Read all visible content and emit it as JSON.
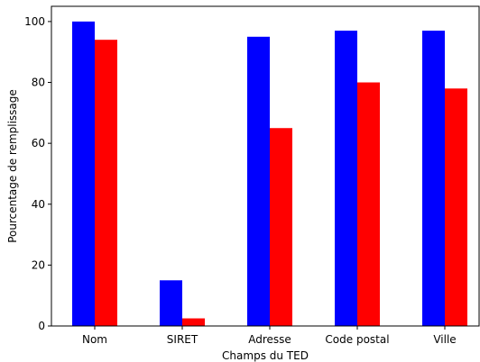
{
  "chart_data": {
    "type": "bar",
    "title": "",
    "xlabel": "Champs du TED",
    "ylabel": "Pourcentage de remplissage",
    "categories": [
      "Nom",
      "SIRET",
      "Adresse",
      "Code postal",
      "Ville"
    ],
    "series": [
      {
        "color": "#0000ff",
        "values": [
          100,
          15,
          95,
          97,
          97
        ]
      },
      {
        "color": "#ff0000",
        "values": [
          94,
          2.5,
          65,
          80,
          78
        ]
      }
    ],
    "ylim": [
      0,
      105
    ],
    "yticks": [
      0,
      20,
      40,
      60,
      80,
      100
    ],
    "grid": false,
    "legend": "none"
  }
}
